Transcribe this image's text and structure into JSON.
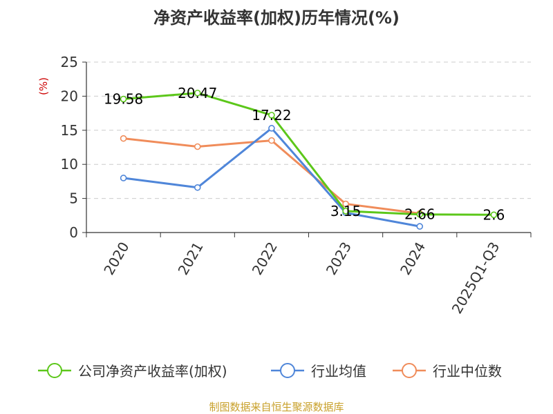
{
  "colors": {
    "roe": "#5cc71a",
    "industry_avg": "#4f86d9",
    "industry_median": "#f08c5a",
    "grid": "#cccccc",
    "axis": "#333333",
    "ylabel": "#cc0000",
    "source": "#c8a02a"
  },
  "chart_data": {
    "type": "line",
    "title": "净资产收益率(加权)历年情况(%)",
    "xlabel": "",
    "ylabel": "(%)",
    "ylim": [
      0,
      25
    ],
    "yticks": [
      0,
      5,
      10,
      15,
      20,
      25
    ],
    "grid": true,
    "legend_position": "bottom",
    "categories": [
      "2020",
      "2021",
      "2022",
      "2023",
      "2024",
      "2025Q1-Q3"
    ],
    "series": [
      {
        "name": "公司净资产收益率(加权)",
        "color_key": "roe",
        "values": [
          19.58,
          20.47,
          17.22,
          3.15,
          2.66,
          2.6
        ],
        "labels": [
          "19.58",
          "20.47",
          "17.22",
          "3.15",
          "2.66",
          "2.6"
        ]
      },
      {
        "name": "行业均值",
        "color_key": "industry_avg",
        "values": [
          8.0,
          6.6,
          15.3,
          2.9,
          0.9,
          null
        ]
      },
      {
        "name": "行业中位数",
        "color_key": "industry_median",
        "values": [
          13.8,
          12.6,
          13.5,
          4.2,
          2.8,
          null
        ]
      }
    ]
  },
  "footer": {
    "source_text": "制图数据来自恒生聚源数据库"
  }
}
